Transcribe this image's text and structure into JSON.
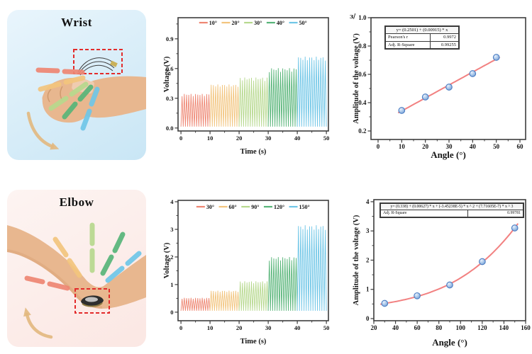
{
  "figure": {
    "panels": {
      "wrist": {
        "title": "Wrist"
      },
      "elbow": {
        "title": "Elbow"
      }
    },
    "corner_fragment": "ɜ/"
  },
  "palette": {
    "series": [
      "#ee8672",
      "#f2c47d",
      "#b6d88d",
      "#57b478",
      "#6fc6e7"
    ],
    "fit_line": "#f28181",
    "marker_fill": "#a9c7ea",
    "marker_edge": "#4a7cc2",
    "axis": "#3d3d3d",
    "red_dashed_box": "#e32b2b",
    "arrow": "#e2b87e",
    "skin": "#e8b78f",
    "wrist_panel_bg": [
      "#e9f5fc",
      "#c9e6f5"
    ],
    "elbow_panel_bg": [
      "#fdf4f2",
      "#fbe7e3"
    ]
  },
  "chart_data": [
    {
      "id": "wrist-voltage-time",
      "type": "line",
      "region": "Wrist",
      "xlabel": "Time (s)",
      "ylabel": "Voltage (V)",
      "xlim": [
        -1,
        50.7
      ],
      "ylim": [
        -0.03,
        1.113
      ],
      "xticks": [
        0,
        10,
        20,
        30,
        40,
        50
      ],
      "xtick_labels": [
        "0",
        "10",
        "20",
        "30",
        "40",
        "50"
      ],
      "yticks": [
        0,
        0.3,
        0.6,
        0.9
      ],
      "ytick_labels": [
        "0.0",
        "0.3",
        "0.6",
        "0.9"
      ],
      "x_minor_step": 5,
      "y_minor_step": 0.15,
      "grid": false,
      "legend_position": "top-center-inside",
      "series": [
        {
          "name": "10°",
          "color": "#ee8672",
          "t_start": 0,
          "t_end": 10,
          "amplitude": 0.345,
          "cycles": 13
        },
        {
          "name": "20°",
          "color": "#f2c47d",
          "t_start": 10,
          "t_end": 20,
          "amplitude": 0.44,
          "cycles": 13
        },
        {
          "name": "30°",
          "color": "#b6d88d",
          "t_start": 20,
          "t_end": 30,
          "amplitude": 0.51,
          "cycles": 13
        },
        {
          "name": "40°",
          "color": "#57b478",
          "t_start": 30,
          "t_end": 40,
          "amplitude": 0.605,
          "cycles": 13
        },
        {
          "name": "50°",
          "color": "#6fc6e7",
          "t_start": 40,
          "t_end": 50,
          "amplitude": 0.72,
          "cycles": 13
        }
      ]
    },
    {
      "id": "wrist-amplitude-vs-angle",
      "type": "scatter",
      "region": "Wrist",
      "xlabel": "Angle (°)",
      "ylabel": "Amplitude of the voltage (V)",
      "xlim": [
        -3,
        62.4
      ],
      "ylim": [
        0.14,
        1.0
      ],
      "xticks": [
        0,
        10,
        20,
        30,
        40,
        50,
        60
      ],
      "xtick_labels": [
        "0",
        "10",
        "20",
        "30",
        "40",
        "50",
        "60"
      ],
      "yticks": [
        0.2,
        0.4,
        0.6,
        0.8,
        1.0
      ],
      "ytick_labels": [
        "0.2",
        "0.4",
        "0.6",
        "0.8",
        "1.0"
      ],
      "x_minor_step": 5,
      "y_minor_step": 0.1,
      "grid": false,
      "x": [
        10,
        20,
        30,
        40,
        50
      ],
      "y": [
        0.345,
        0.44,
        0.51,
        0.605,
        0.72
      ],
      "fit": {
        "type": "polynomial",
        "coefficients": [
          0.2501,
          0.00915
        ],
        "x_range": [
          8.5,
          51.5
        ]
      },
      "inset_table": {
        "equation": "y= (0.2501) + (0.00915) * x",
        "rows": [
          [
            "Pearson's r",
            "0.9972"
          ],
          [
            "Adj. R-Square",
            "0.99255"
          ]
        ]
      }
    },
    {
      "id": "elbow-voltage-time",
      "type": "line",
      "region": "Elbow",
      "xlabel": "Time (s)",
      "ylabel": "Voltage (V)",
      "xlim": [
        -1,
        50.7
      ],
      "ylim": [
        -0.31,
        4.05
      ],
      "xticks": [
        0,
        10,
        20,
        30,
        40,
        50
      ],
      "xtick_labels": [
        "0",
        "10",
        "20",
        "30",
        "40",
        "50"
      ],
      "yticks": [
        0,
        1,
        2,
        3,
        4
      ],
      "ytick_labels": [
        "0",
        "1",
        "2",
        "3",
        "4"
      ],
      "x_minor_step": 5,
      "y_minor_step": 0.5,
      "grid": false,
      "legend_position": "top-center-inside",
      "series": [
        {
          "name": "30°",
          "color": "#ee8672",
          "t_start": 0,
          "t_end": 10,
          "amplitude": 0.52,
          "cycles": 13
        },
        {
          "name": "60°",
          "color": "#f2c47d",
          "t_start": 10,
          "t_end": 20,
          "amplitude": 0.78,
          "cycles": 13
        },
        {
          "name": "90°",
          "color": "#b6d88d",
          "t_start": 20,
          "t_end": 30,
          "amplitude": 1.12,
          "cycles": 13
        },
        {
          "name": "120°",
          "color": "#57b478",
          "t_start": 30,
          "t_end": 40,
          "amplitude": 2.0,
          "cycles": 13
        },
        {
          "name": "150°",
          "color": "#6fc6e7",
          "t_start": 40,
          "t_end": 50,
          "amplitude": 3.15,
          "cycles": 13
        }
      ]
    },
    {
      "id": "elbow-amplitude-vs-angle",
      "type": "scatter",
      "region": "Elbow",
      "xlabel": "Angle (°)",
      "ylabel": "Amplitude of the voltage (V)",
      "xlim": [
        20,
        160
      ],
      "ylim": [
        -0.073,
        4.07
      ],
      "xticks": [
        20,
        40,
        60,
        80,
        100,
        120,
        140,
        160
      ],
      "xtick_labels": [
        "20",
        "40",
        "60",
        "80",
        "100",
        "120",
        "140",
        "160"
      ],
      "yticks": [
        0,
        1,
        2,
        3,
        4
      ],
      "ytick_labels": [
        "0",
        "1",
        "2",
        "3",
        "4"
      ],
      "x_minor_step": 10,
      "y_minor_step": 0.5,
      "grid": false,
      "x": [
        30,
        60,
        90,
        120,
        150
      ],
      "y": [
        0.52,
        0.78,
        1.15,
        1.95,
        3.1
      ],
      "fit": {
        "type": "polynomial",
        "coefficients": [
          0.338,
          0.00627,
          -3.45238e-05,
          7.71605e-07
        ],
        "x_range": [
          26,
          153
        ]
      },
      "inset_table": {
        "equation": "y= (0.338) + (0.00627) * x + (-3.45238E-5) * x ^ 2 + (7.71605E-7) * x ^ 3",
        "rows": [
          [
            "Adj. R-Square",
            "0.99781"
          ]
        ]
      }
    }
  ]
}
